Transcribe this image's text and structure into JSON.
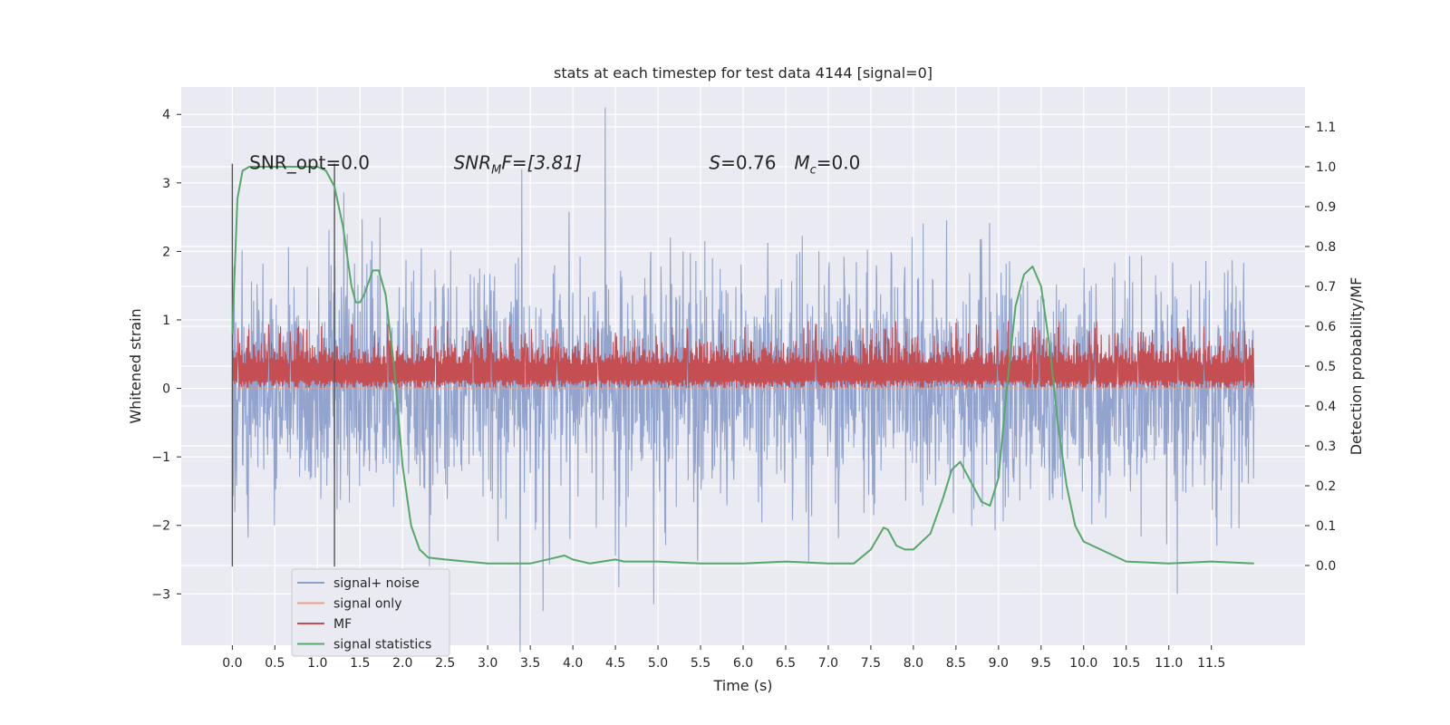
{
  "chart_data": {
    "type": "line",
    "title": "stats at each timestep for test data 4144 [signal=0]",
    "xlabel": "Time (s)",
    "ylabel": "Whitened strain",
    "ylabel_right": "Detection probability/MF",
    "xlim": [
      -0.6,
      12.6
    ],
    "ylim": [
      -3.75,
      4.4
    ],
    "ylim_right": [
      -0.2,
      1.2
    ],
    "x_ticks": [
      "0.0",
      "0.5",
      "1.0",
      "1.5",
      "2.0",
      "2.5",
      "3.0",
      "3.5",
      "4.0",
      "4.5",
      "5.0",
      "5.5",
      "6.0",
      "6.5",
      "7.0",
      "7.5",
      "8.0",
      "8.5",
      "9.0",
      "9.5",
      "10.0",
      "10.5",
      "11.0",
      "11.5"
    ],
    "y_ticks": [
      "−3",
      "−2",
      "−1",
      "0",
      "1",
      "2",
      "3",
      "4"
    ],
    "y_ticks_right": [
      "0.0",
      "0.1",
      "0.2",
      "0.3",
      "0.4",
      "0.5",
      "0.6",
      "0.7",
      "0.8",
      "0.9",
      "1.0",
      "1.1"
    ],
    "grid": true,
    "legend_position": "lower-left",
    "annotations": {
      "snr_opt": "SNR_opt=0.0",
      "snr_mf_base": "SNR",
      "snr_mf_sub": "M",
      "snr_mf_tail": "F=[3.81]",
      "s_label": "S",
      "s_value": "=0.76",
      "mc_base": "M",
      "mc_sub": "c",
      "mc_value": "=0.0"
    },
    "vertical_markers": [
      0.0,
      1.2
    ],
    "series": [
      {
        "name": "signal+ noise",
        "color": "#8da0cb",
        "style": "noise",
        "time_range": [
          0.0,
          12.0
        ],
        "typical_range": [
          -1.5,
          1.5
        ],
        "peaks": [
          {
            "x": 3.38,
            "y": 3.85
          },
          {
            "x": 4.38,
            "y": 4.1
          },
          {
            "x": 3.4,
            "y": -3.2
          },
          {
            "x": 3.65,
            "y": -3.25
          },
          {
            "x": 4.95,
            "y": -3.15
          },
          {
            "x": 11.1,
            "y": -3.0
          }
        ]
      },
      {
        "name": "signal only",
        "color": "#e8a087",
        "style": "flat",
        "time_range": [
          0.0,
          12.0
        ],
        "value": 0.0
      },
      {
        "name": "MF",
        "color": "#c44e52",
        "style": "band",
        "time_range": [
          0.0,
          12.0
        ],
        "typical_range": [
          0.0,
          0.7
        ]
      },
      {
        "name": "signal statistics",
        "color": "#55a868",
        "style": "line",
        "axis": "right",
        "x": [
          0.0,
          0.06,
          0.12,
          0.2,
          0.3,
          0.5,
          0.8,
          1.0,
          1.1,
          1.2,
          1.3,
          1.4,
          1.45,
          1.5,
          1.55,
          1.65,
          1.72,
          1.8,
          1.9,
          2.0,
          2.1,
          2.2,
          2.3,
          2.5,
          3.0,
          3.5,
          3.8,
          3.9,
          4.0,
          4.2,
          4.5,
          4.6,
          4.8,
          5.0,
          5.5,
          6.0,
          6.5,
          7.0,
          7.3,
          7.5,
          7.65,
          7.7,
          7.8,
          7.9,
          8.0,
          8.2,
          8.35,
          8.45,
          8.55,
          8.65,
          8.8,
          8.9,
          9.0,
          9.1,
          9.2,
          9.3,
          9.4,
          9.5,
          9.6,
          9.7,
          9.8,
          9.9,
          10.0,
          10.2,
          10.5,
          11.0,
          11.5,
          12.0
        ],
        "y": [
          0.58,
          0.92,
          0.99,
          1.0,
          1.0,
          1.0,
          1.0,
          1.0,
          0.99,
          0.95,
          0.85,
          0.7,
          0.66,
          0.66,
          0.68,
          0.74,
          0.74,
          0.68,
          0.5,
          0.25,
          0.1,
          0.04,
          0.02,
          0.015,
          0.005,
          0.005,
          0.02,
          0.025,
          0.015,
          0.005,
          0.015,
          0.01,
          0.01,
          0.01,
          0.005,
          0.005,
          0.01,
          0.005,
          0.005,
          0.04,
          0.095,
          0.09,
          0.05,
          0.04,
          0.04,
          0.08,
          0.17,
          0.24,
          0.26,
          0.22,
          0.16,
          0.15,
          0.22,
          0.45,
          0.65,
          0.73,
          0.75,
          0.7,
          0.55,
          0.35,
          0.2,
          0.1,
          0.06,
          0.04,
          0.01,
          0.005,
          0.01,
          0.005
        ]
      }
    ]
  }
}
